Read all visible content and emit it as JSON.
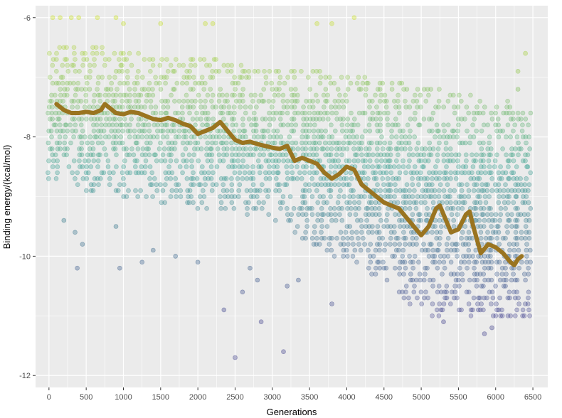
{
  "chart_data": {
    "type": "scatter",
    "xlabel": "Generations",
    "ylabel": "Binding energy/(kcal/mol)",
    "xlim": [
      -180,
      6700
    ],
    "ylim": [
      -12.2,
      -5.8
    ],
    "x_ticks": [
      0,
      500,
      1000,
      1500,
      2000,
      2500,
      3000,
      3500,
      4000,
      4500,
      5000,
      5500,
      6000,
      6500
    ],
    "y_ticks": [
      -12,
      -10,
      -8,
      -6
    ],
    "x_tick_labels": [
      "0",
      "500",
      "1000",
      "1500",
      "2000",
      "2500",
      "3000",
      "3500",
      "4000",
      "4500",
      "5000",
      "5500",
      "6000",
      "6500"
    ],
    "y_tick_labels": [
      "-12",
      "-10",
      "-8",
      "-6"
    ],
    "grid": true,
    "legend": "none",
    "colors": {
      "panel": "#ebebeb",
      "grid": "#ffffff",
      "trend_line": "#9a7420",
      "color_scale_high": "#c8e020",
      "color_scale_mid": "#2a9a8a",
      "color_scale_low": "#3b3b8a"
    },
    "series": [
      {
        "type": "scatter",
        "x_range": [
          0,
          6450
        ],
        "y_step": 0.1,
        "color_mapped_to": "y",
        "envelope": {
          "x": [
            0,
            500,
            1000,
            1500,
            2000,
            2500,
            3000,
            3500,
            4000,
            4500,
            5000,
            5500,
            6000,
            6450
          ],
          "y_top": [
            -6.5,
            -6.5,
            -6.6,
            -6.7,
            -6.7,
            -6.8,
            -6.9,
            -6.9,
            -7.0,
            -7.1,
            -7.2,
            -7.3,
            -7.4,
            -7.5
          ],
          "y_bottom": [
            -8.7,
            -8.9,
            -9.0,
            -9.1,
            -9.2,
            -9.3,
            -9.4,
            -9.8,
            -10.1,
            -10.4,
            -11.0,
            -11.0,
            -11.0,
            -11.0
          ]
        },
        "sparse_high": [
          [
            50,
            -6.0
          ],
          [
            150,
            -6.0
          ],
          [
            300,
            -6.0
          ],
          [
            400,
            -6.0
          ],
          [
            650,
            -6.0
          ],
          [
            900,
            -6.0
          ],
          [
            1000,
            -6.1
          ],
          [
            1500,
            -6.1
          ],
          [
            2100,
            -6.1
          ],
          [
            2200,
            -6.1
          ],
          [
            3600,
            -6.1
          ],
          [
            3800,
            -6.1
          ],
          [
            4100,
            -6.0
          ],
          [
            6400,
            -6.6
          ],
          [
            6300,
            -6.9
          ],
          [
            6300,
            -7.2
          ]
        ],
        "outliers_low": [
          [
            200,
            -9.4
          ],
          [
            350,
            -9.6
          ],
          [
            380,
            -10.2
          ],
          [
            450,
            -9.8
          ],
          [
            900,
            -9.5
          ],
          [
            950,
            -10.2
          ],
          [
            1250,
            -10.1
          ],
          [
            1400,
            -9.9
          ],
          [
            1700,
            -10.0
          ],
          [
            2000,
            -10.1
          ],
          [
            2350,
            -10.9
          ],
          [
            2500,
            -11.7
          ],
          [
            2600,
            -10.6
          ],
          [
            2700,
            -10.2
          ],
          [
            2800,
            -10.4
          ],
          [
            2850,
            -11.1
          ],
          [
            3150,
            -11.6
          ],
          [
            3200,
            -10.5
          ],
          [
            3350,
            -10.4
          ],
          [
            3800,
            -10.8
          ],
          [
            5300,
            -11.1
          ],
          [
            5850,
            -11.3
          ],
          [
            5950,
            -11.2
          ]
        ]
      },
      {
        "type": "line",
        "x": [
          100,
          200,
          300,
          400,
          500,
          600,
          700,
          750,
          800,
          900,
          1000,
          1100,
          1200,
          1300,
          1400,
          1500,
          1600,
          1700,
          1800,
          1900,
          2000,
          2100,
          2200,
          2300,
          2400,
          2500,
          2600,
          2700,
          2800,
          2900,
          3000,
          3100,
          3200,
          3300,
          3400,
          3500,
          3600,
          3700,
          3800,
          3900,
          4000,
          4100,
          4200,
          4300,
          4400,
          4500,
          4600,
          4700,
          4800,
          4900,
          5000,
          5100,
          5200,
          5250,
          5300,
          5400,
          5500,
          5600,
          5650,
          5700,
          5800,
          5900,
          6000,
          6100,
          6200,
          6250,
          6300,
          6350
        ],
        "y": [
          -7.45,
          -7.55,
          -7.6,
          -7.6,
          -7.58,
          -7.6,
          -7.55,
          -7.45,
          -7.5,
          -7.6,
          -7.62,
          -7.58,
          -7.6,
          -7.65,
          -7.7,
          -7.72,
          -7.68,
          -7.72,
          -7.78,
          -7.82,
          -7.95,
          -7.9,
          -7.85,
          -7.75,
          -7.9,
          -8.05,
          -8.1,
          -8.08,
          -8.12,
          -8.15,
          -8.18,
          -8.2,
          -8.15,
          -8.4,
          -8.35,
          -8.4,
          -8.45,
          -8.6,
          -8.7,
          -8.62,
          -8.5,
          -8.55,
          -8.8,
          -8.9,
          -9.0,
          -9.1,
          -9.15,
          -9.2,
          -9.35,
          -9.5,
          -9.65,
          -9.5,
          -9.2,
          -9.15,
          -9.3,
          -9.6,
          -9.55,
          -9.3,
          -9.25,
          -9.5,
          -9.95,
          -9.8,
          -9.85,
          -9.95,
          -10.1,
          -10.15,
          -10.05,
          -10.0
        ]
      }
    ]
  }
}
